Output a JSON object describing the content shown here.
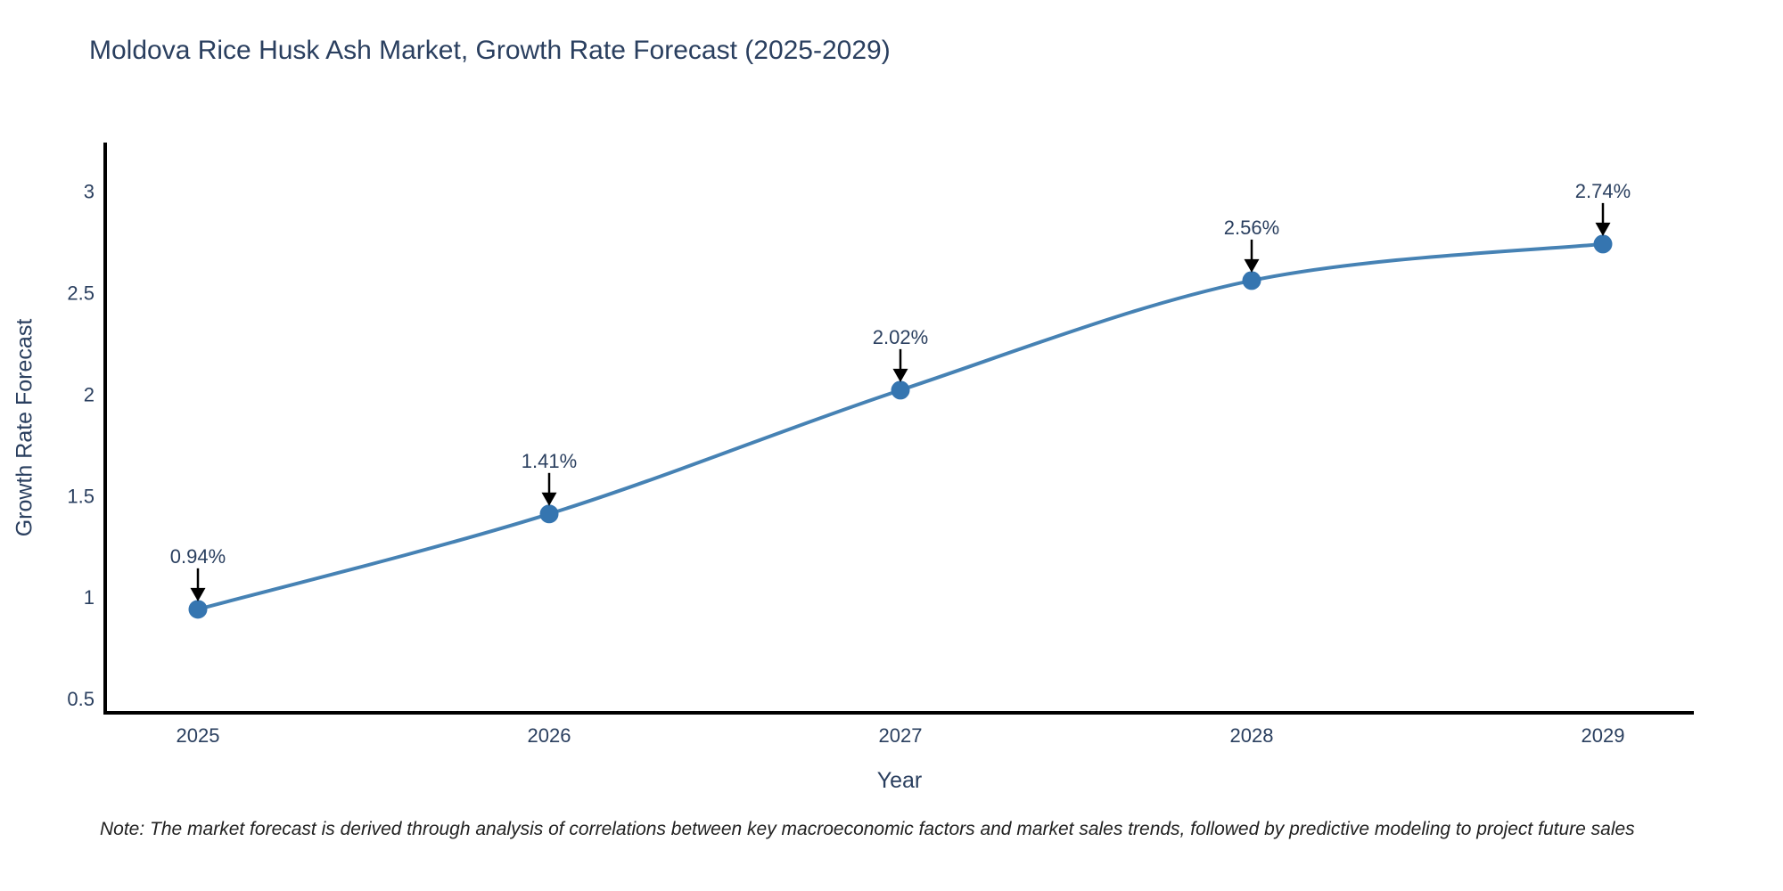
{
  "note": "Note: The market forecast is derived through analysis of correlations between key macroeconomic factors and market sales trends, followed by predictive modeling to project future sales",
  "chart_data": {
    "type": "line",
    "title": "Moldova Rice Husk Ash Market, Growth Rate Forecast (2025-2029)",
    "xlabel": "Year",
    "ylabel": "Growth Rate Forecast",
    "categories": [
      "2025",
      "2026",
      "2027",
      "2028",
      "2029"
    ],
    "series": [
      {
        "name": "Growth Rate Forecast",
        "values": [
          0.94,
          1.41,
          2.02,
          2.56,
          2.74
        ],
        "data_labels": [
          "0.94%",
          "1.41%",
          "2.02%",
          "2.56%",
          "2.74%"
        ]
      }
    ],
    "yticks": [
      0.5,
      1,
      1.5,
      2,
      2.5,
      3
    ],
    "ylim": [
      0.43,
      3.24
    ],
    "line_shape": "spline",
    "grid": false,
    "legend_position": "none",
    "annotation_style": "black-down-arrow",
    "colors": {
      "line": "#4682b4",
      "marker": "#3575b0",
      "arrow": "#000000",
      "axis": "#000000",
      "text": "#2a3f5f",
      "note_text": "#222222"
    }
  }
}
